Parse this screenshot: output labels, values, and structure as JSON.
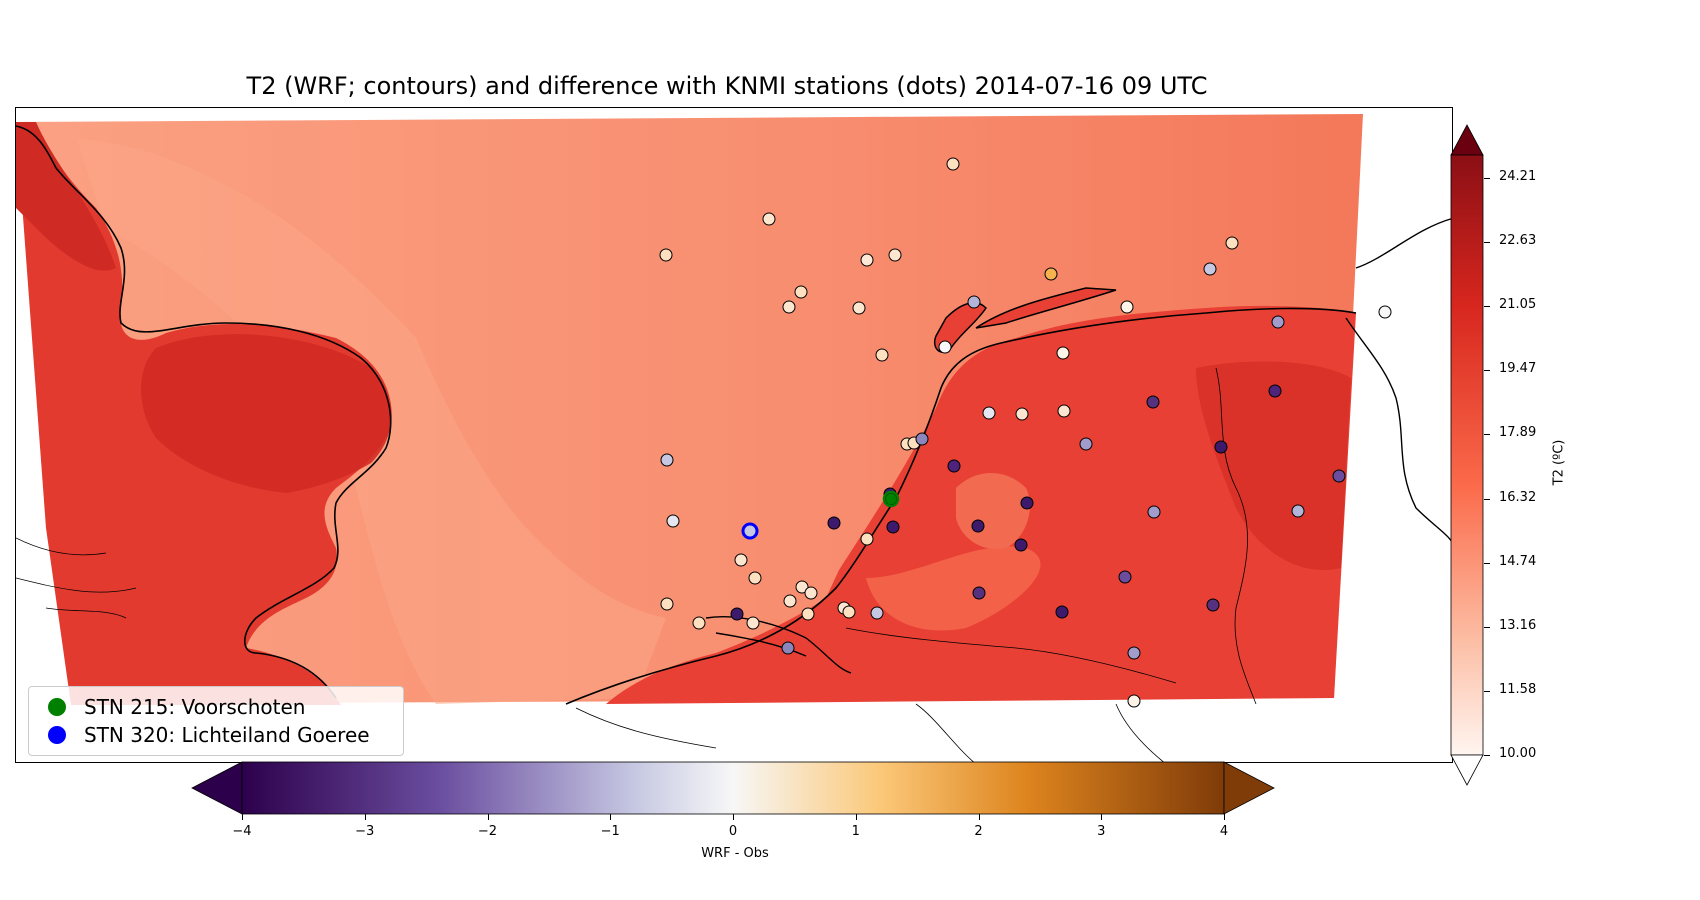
{
  "title": "T2 (WRF; contours) and difference with KNMI stations (dots) 2014-07-16 09 UTC",
  "legend": [
    {
      "label": "STN 215: Voorschoten",
      "color": "#008000"
    },
    {
      "label": "STN 320: Lichteiland Goeree",
      "color": "#0000ff"
    }
  ],
  "temperature_colorbar": {
    "label": "T2 (ºC)",
    "ticks": [
      "24.21",
      "22.63",
      "21.05",
      "19.47",
      "17.89",
      "16.32",
      "14.74",
      "13.16",
      "11.58",
      "10.00"
    ],
    "min": 10.0,
    "max": 24.21,
    "colormap": "Reds"
  },
  "difference_colorbar": {
    "label": "WRF - Obs",
    "ticks": [
      "−4",
      "−3",
      "−2",
      "−1",
      "0",
      "1",
      "2",
      "3",
      "4"
    ],
    "min": -4,
    "max": 4,
    "colormap": "PuOr_r"
  },
  "colors": {
    "sea": "#f88d6f",
    "sea_light": "#fba183",
    "land": "#e93e33",
    "land_dark": "#d62b25",
    "land_light": "#f3634a",
    "coast": "#000000"
  }
}
